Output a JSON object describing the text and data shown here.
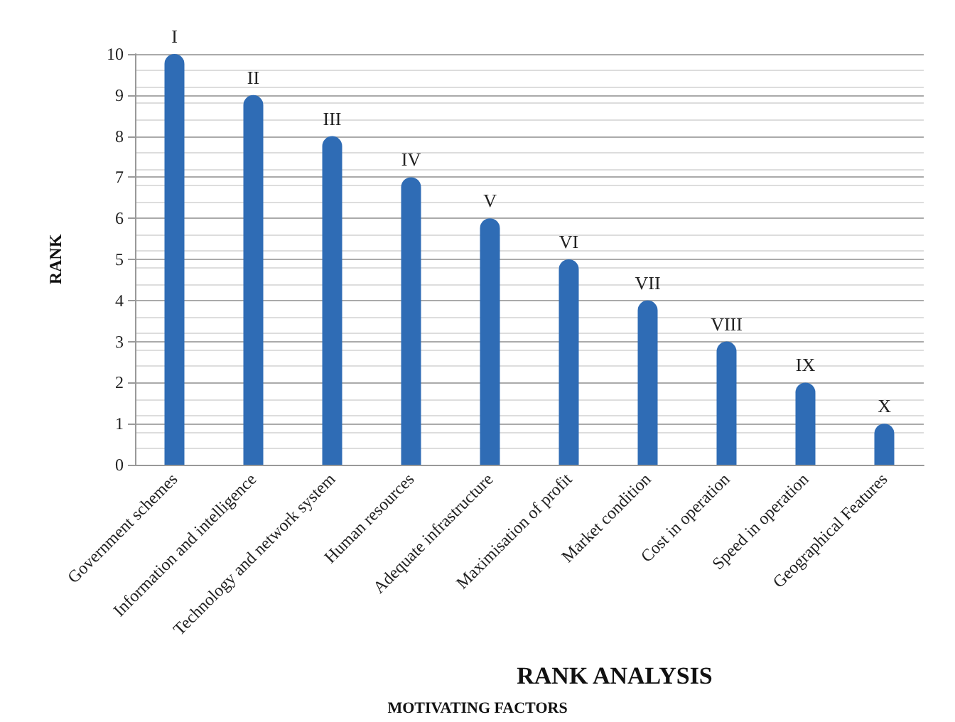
{
  "chart_data": {
    "type": "bar",
    "categories": [
      "Government schemes",
      "Information and intelligence",
      "Technology and network system",
      "Human resources",
      "Adequate infrastructure",
      "Maximisation of profit",
      "Market condition",
      "Cost in operation",
      "Speed in operation",
      "Geographical Features"
    ],
    "values": [
      10,
      9,
      8,
      7,
      6,
      5,
      4,
      3,
      2,
      1
    ],
    "value_labels": [
      "I",
      "II",
      "III",
      "IV",
      "V",
      "VI",
      "VII",
      "VIII",
      "IX",
      "X"
    ],
    "color": "#2f6cb5",
    "xlabel": "RANK ANALYSIS",
    "ylabel": "RANK",
    "annotations": [
      "MOTIVATING FACTORS"
    ],
    "ylim": [
      0,
      10
    ],
    "yticks": [
      0,
      1,
      2,
      3,
      4,
      5,
      6,
      7,
      8,
      9,
      10
    ],
    "grid": "y"
  }
}
